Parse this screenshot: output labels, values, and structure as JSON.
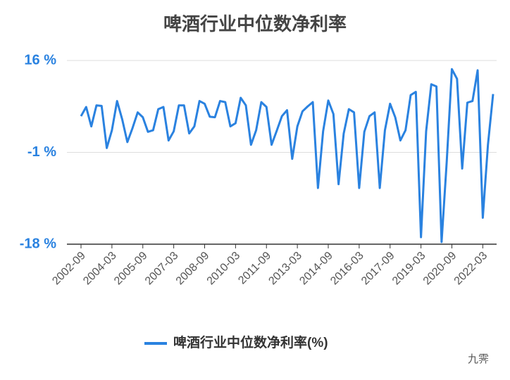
{
  "chart_data": {
    "type": "line",
    "title": "啤酒行业中位数净利率",
    "categories": [
      "2002-09",
      null,
      null,
      null,
      null,
      null,
      "2004-03",
      null,
      null,
      null,
      null,
      null,
      "2005-09",
      null,
      null,
      null,
      null,
      null,
      "2007-03",
      null,
      null,
      null,
      null,
      null,
      "2008-09",
      null,
      null,
      null,
      null,
      null,
      "2010-03",
      null,
      null,
      null,
      null,
      null,
      "2011-09",
      null,
      null,
      null,
      null,
      null,
      "2013-03",
      null,
      null,
      null,
      null,
      null,
      "2014-09",
      null,
      null,
      null,
      null,
      null,
      "2016-03",
      null,
      null,
      null,
      null,
      null,
      "2017-09",
      null,
      null,
      null,
      null,
      null,
      "2019-03",
      null,
      null,
      null,
      null,
      null,
      "2020-09",
      null,
      null,
      null,
      null,
      null,
      "2022-03",
      null,
      null
    ],
    "series": [
      {
        "name": "啤酒行业中位数净利率(%)",
        "color": "#2a82e0",
        "values": [
          5.7,
          7.4,
          3.8,
          7.7,
          7.6,
          -0.2,
          3.1,
          8.5,
          5.1,
          0.9,
          3.5,
          6.4,
          5.5,
          2.8,
          3.1,
          7.0,
          7.4,
          1.2,
          2.9,
          7.7,
          7.7,
          2.5,
          3.8,
          8.5,
          8.0,
          5.6,
          5.5,
          8.5,
          8.3,
          3.8,
          4.4,
          9.1,
          7.7,
          0.4,
          3.1,
          8.3,
          7.4,
          0.4,
          3.0,
          5.7,
          6.8,
          -2.2,
          3.8,
          6.6,
          7.5,
          8.3,
          -7.6,
          2.9,
          8.6,
          6.1,
          -6.9,
          2.5,
          7.0,
          6.4,
          -7.6,
          2.8,
          5.7,
          6.4,
          -7.6,
          3.1,
          8.0,
          5.5,
          1.2,
          3.1,
          9.6,
          10.2,
          -16.7,
          2.9,
          11.6,
          11.2,
          -17.6,
          -2.7,
          14.4,
          12.6,
          -4.0,
          8.2,
          8.5,
          14.2,
          -13.1,
          0.4,
          9.8
        ]
      }
    ],
    "ylim": [
      -18,
      16
    ],
    "yticks": [
      {
        "value": -18,
        "label": "-18 %"
      },
      {
        "value": -1,
        "label": "-1 %"
      },
      {
        "value": 16,
        "label": "16 %"
      }
    ],
    "grid": true,
    "legend": "bottom",
    "watermark": "九霁"
  }
}
